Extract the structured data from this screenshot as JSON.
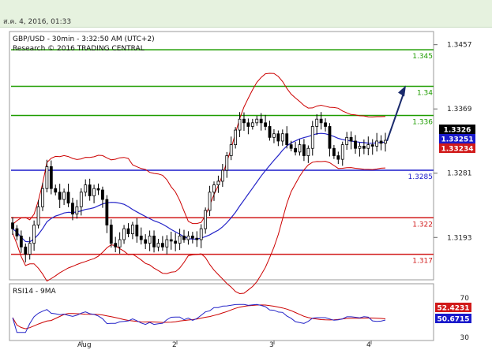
{
  "timestamp": "ส.ค. 4, 2016, 01:33",
  "chart_header": {
    "line1": "GBP/USD - 30min - 3:32:50 AM (UTC+2)",
    "line2": "Research © 2016 TRADING CENTRAL"
  },
  "colors": {
    "resistance": "#1f9d00",
    "pivot": "#1a1acb",
    "support": "#d11a1a",
    "bands": "#cc0000",
    "ma": "#2424c8",
    "candle": "#000000",
    "arrow": "#1a2a6c",
    "rsi": "#2424c8",
    "rsi_ma": "#cc0000"
  },
  "chart_data": {
    "type": "candlestick",
    "symbol": "GBP/USD",
    "timeframe": "30min",
    "y_ticks": [
      "1.3457",
      "1.3369",
      "1.3281",
      "1.3193"
    ],
    "ylim": [
      1.3135,
      1.3475
    ],
    "x_ticks": [
      "Aug",
      "2",
      "3",
      "4"
    ],
    "levels": [
      {
        "label": "1.345",
        "value": 1.345,
        "kind": "resistance"
      },
      {
        "label": "1.34",
        "value": 1.34,
        "kind": "resistance"
      },
      {
        "label": "1.336",
        "value": 1.336,
        "kind": "resistance"
      },
      {
        "label": "1.3285",
        "value": 1.3285,
        "kind": "pivot"
      },
      {
        "label": "1.322",
        "value": 1.322,
        "kind": "support"
      },
      {
        "label": "1.317",
        "value": 1.317,
        "kind": "support"
      }
    ],
    "price_tags": [
      {
        "label": "1.3326",
        "value": 1.3326,
        "color": "#000000"
      },
      {
        "label": "1.33251",
        "value": 1.33251,
        "color": "#1a1acb"
      },
      {
        "label": "1.33234",
        "value": 1.33234,
        "color": "#d11a1a"
      }
    ],
    "closes": [
      1.3205,
      1.3195,
      1.318,
      1.317,
      1.3185,
      1.321,
      1.3235,
      1.326,
      1.329,
      1.326,
      1.3255,
      1.3245,
      1.3255,
      1.324,
      1.3225,
      1.3235,
      1.3255,
      1.3265,
      1.325,
      1.326,
      1.3258,
      1.3245,
      1.321,
      1.3185,
      1.318,
      1.319,
      1.3205,
      1.3198,
      1.321,
      1.3195,
      1.319,
      1.3185,
      1.3195,
      1.318,
      1.3185,
      1.318,
      1.319,
      1.3188,
      1.3185,
      1.3195,
      1.319,
      1.3195,
      1.3192,
      1.319,
      1.3205,
      1.323,
      1.3255,
      1.3265,
      1.327,
      1.3285,
      1.3305,
      1.332,
      1.334,
      1.3355,
      1.335,
      1.3345,
      1.335,
      1.3355,
      1.335,
      1.3345,
      1.333,
      1.3335,
      1.3325,
      1.3335,
      1.332,
      1.3315,
      1.331,
      1.332,
      1.3305,
      1.3315,
      1.3345,
      1.3355,
      1.335,
      1.3345,
      1.3315,
      1.3305,
      1.33,
      1.332,
      1.333,
      1.3325,
      1.3315,
      1.3318,
      1.3315,
      1.332,
      1.3318,
      1.3325,
      1.3322,
      1.3326
    ],
    "rsi": {
      "label": "RSI14 - 9MA",
      "ylim": [
        30,
        70
      ],
      "ticks": [
        "70",
        "30"
      ],
      "value_tags": [
        {
          "label": "52.4231",
          "color": "#d11a1a"
        },
        {
          "label": "50.6715",
          "color": "#1a1acb"
        }
      ]
    },
    "forecast_arrow": {
      "from": 1.3325,
      "to": 1.3401
    }
  }
}
